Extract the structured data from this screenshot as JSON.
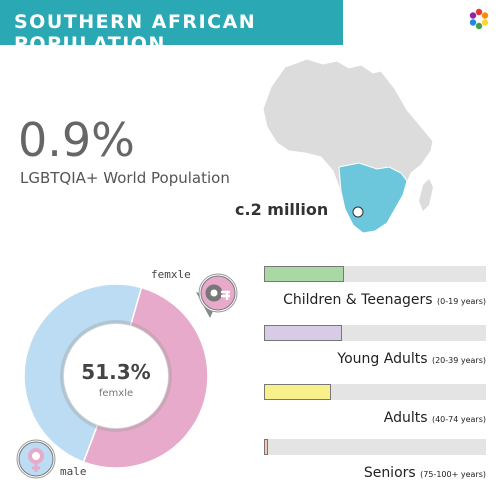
{
  "header": {
    "title": "SOUTHERN AFRICAN POPULATION"
  },
  "headline": {
    "value": "0.9%",
    "label": "LGBTQIA+ World Population"
  },
  "map": {
    "label": "c.2 million",
    "highlight_color": "#6cc6dc",
    "base_color": "#dcdcdc"
  },
  "chart_data": [
    {
      "type": "pie",
      "categories": [
        "femxle",
        "male"
      ],
      "values": [
        51.3,
        48.7
      ],
      "colors": [
        "#e8aacb",
        "#bcdcf3"
      ],
      "center_value": "51.3%",
      "center_label": "femxle",
      "symbol_labels": {
        "femxle": "femxle",
        "male": "male"
      }
    },
    {
      "type": "bar",
      "categories": [
        {
          "name": "Children & Teenagers",
          "range": "(0-19 years)"
        },
        {
          "name": "Young Adults",
          "range": "(20-39 years)"
        },
        {
          "name": "Adults",
          "range": "(40-74 years)"
        },
        {
          "name": "Seniors",
          "range": "(75-100+ years)"
        }
      ],
      "values": [
        36,
        35,
        30,
        2
      ],
      "xlim": [
        0,
        100
      ],
      "colors": [
        "#a8d8a4",
        "#d8cbe6",
        "#f8f08a",
        "#f5c7b6"
      ]
    }
  ]
}
